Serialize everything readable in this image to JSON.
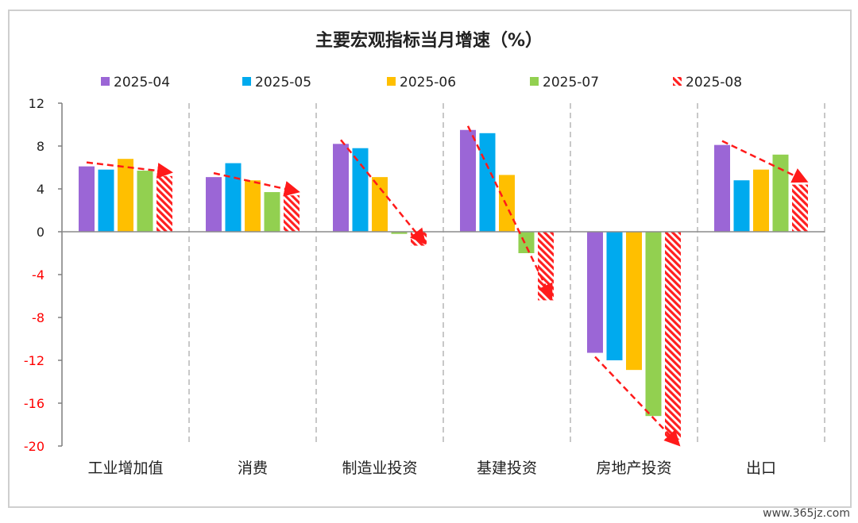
{
  "chart_data": {
    "type": "bar",
    "title": "主要宏观指标当月增速（%）",
    "categories": [
      "工业增加值",
      "消费",
      "制造业投资",
      "基建投资",
      "房地产投资",
      "出口"
    ],
    "series": [
      {
        "name": "2025-04",
        "color": "#9b66d6",
        "values": [
          6.1,
          5.1,
          8.2,
          9.5,
          -11.3,
          8.1
        ]
      },
      {
        "name": "2025-05",
        "color": "#00aaee",
        "values": [
          5.8,
          6.4,
          7.8,
          9.2,
          -12.0,
          4.8
        ]
      },
      {
        "name": "2025-06",
        "color": "#ffbf00",
        "values": [
          6.8,
          4.8,
          5.1,
          5.3,
          -12.9,
          5.8
        ]
      },
      {
        "name": "2025-07",
        "color": "#92d050",
        "values": [
          5.7,
          3.7,
          -0.2,
          -2.0,
          -17.2,
          7.2
        ]
      },
      {
        "name": "2025-08",
        "color": "#ff2020",
        "pattern": "hatched",
        "values": [
          5.2,
          3.4,
          -1.3,
          -6.4,
          -19.4,
          4.4
        ]
      }
    ],
    "yticks": [
      12,
      8,
      4,
      0,
      -4,
      -8,
      -12,
      -16,
      -20
    ],
    "ylim": [
      -20,
      12
    ],
    "negative_tick_color": "#ff0000",
    "legend_position": "top",
    "grid": false,
    "category_separators": "dashed",
    "trend_arrows": "dashed red arrows from 2025-04 to 2025-08 in each category"
  },
  "watermark": "www.365jz.com"
}
